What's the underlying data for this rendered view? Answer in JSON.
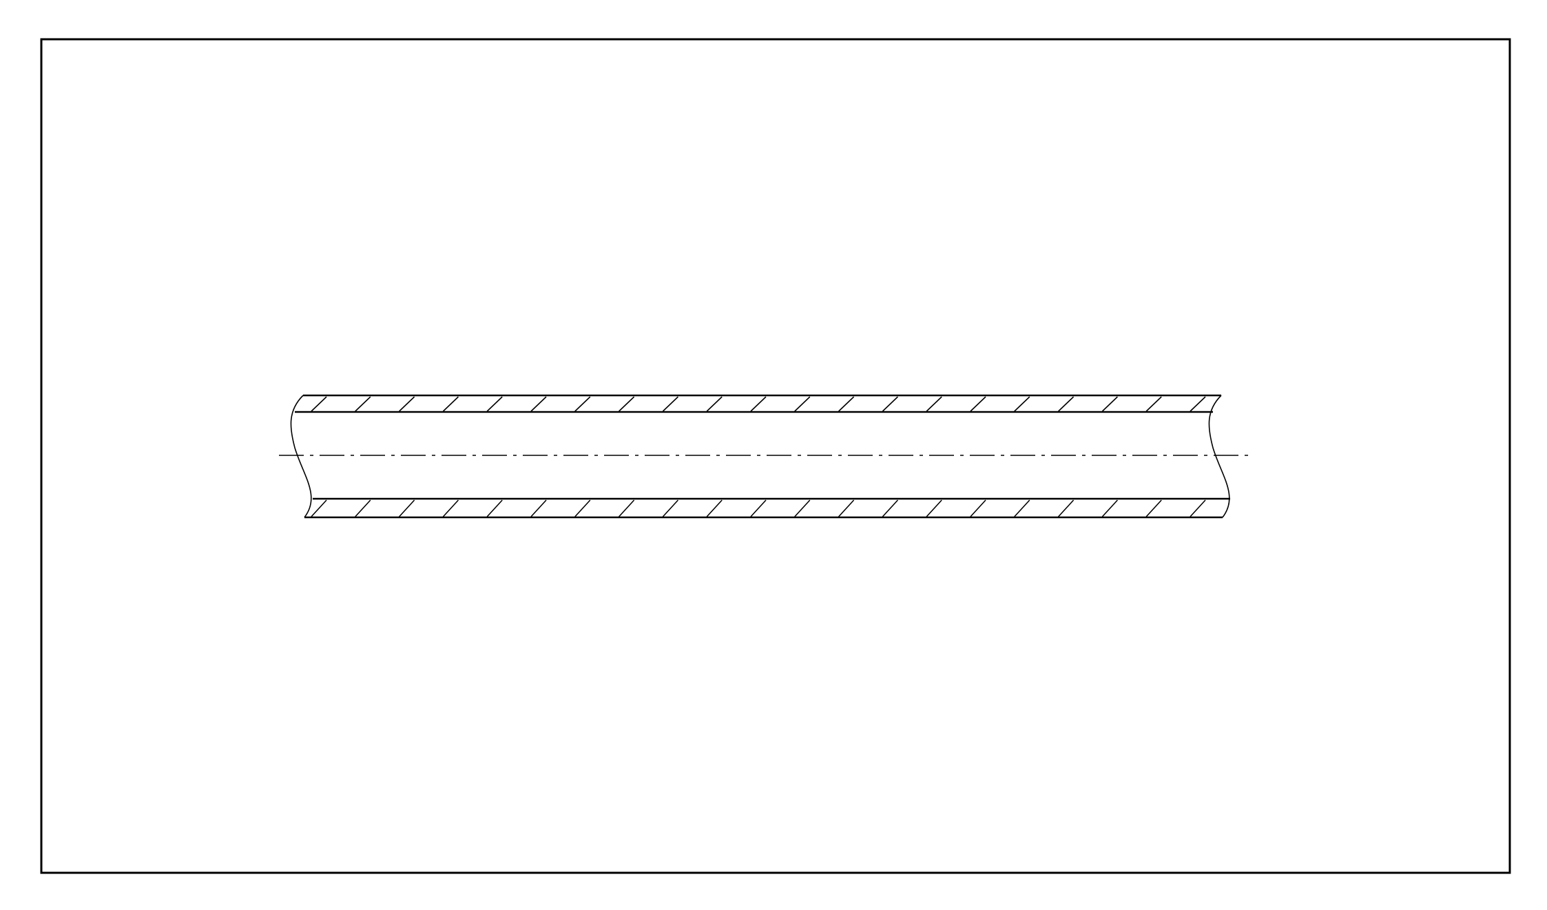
{
  "drawing": {
    "subject": "pipe-longitudinal-section",
    "line_color": "#000000",
    "background_color": "#ffffff",
    "hatch_pattern": "diagonal-45",
    "centerline_style": "dash-dot",
    "break_style": "wavy"
  }
}
